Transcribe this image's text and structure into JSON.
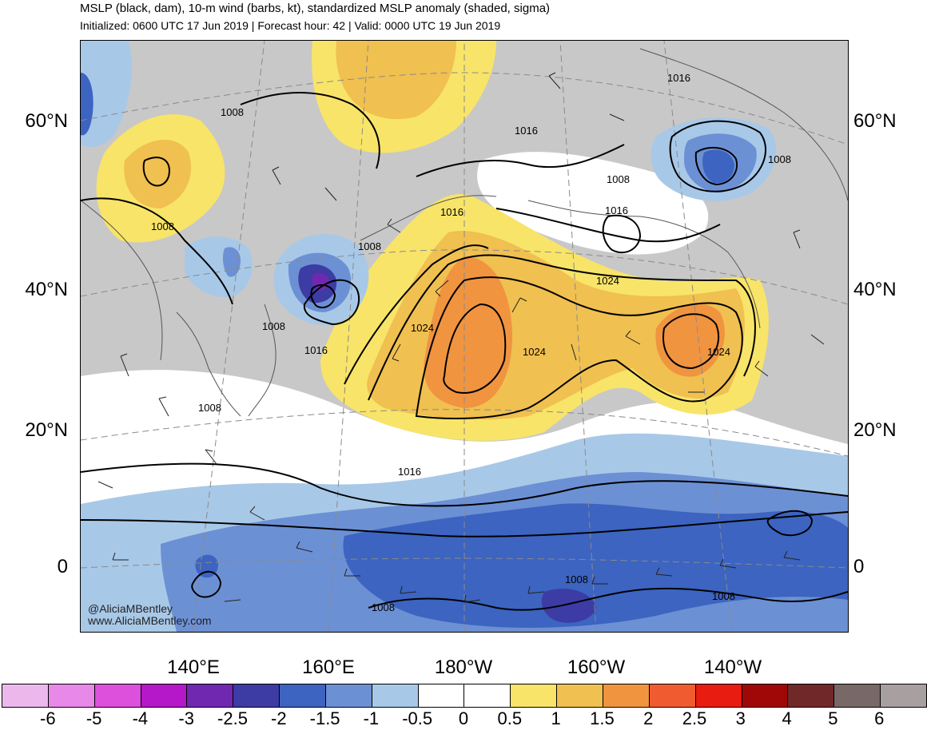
{
  "header": {
    "title": "MSLP (black, dam), 10-m wind (barbs, kt), standardized MSLP anomaly (shaded, sigma)",
    "subtitle": "Initialized: 0600 UTC 17 Jun 2019 | Forecast hour: 42 | Valid: 0000 UTC 19 Jun 2019"
  },
  "lat_labels": [
    "60°N",
    "40°N",
    "20°N",
    "0"
  ],
  "lon_labels": [
    "140°E",
    "160°E",
    "180°W",
    "160°W",
    "140°W"
  ],
  "isobar_labels": [
    "1008",
    "1008",
    "1008",
    "1008",
    "1008",
    "1008",
    "1008",
    "1008",
    "1008",
    "1016",
    "1016",
    "1016",
    "1016",
    "1016",
    "1016",
    "1024",
    "1024",
    "1024",
    "1024"
  ],
  "credits": {
    "handle": "@AliciaMBentley",
    "site": "www.AliciaMBentley.com"
  },
  "colorbar": {
    "ticks": [
      "-6",
      "-5",
      "-4",
      "-3",
      "-2.5",
      "-2",
      "-1.5",
      "-1",
      "-0.5",
      "0",
      "0.5",
      "1",
      "1.5",
      "2",
      "2.5",
      "3",
      "4",
      "5",
      "6"
    ],
    "colors": [
      "#ecb8ec",
      "#e888e8",
      "#dc50dc",
      "#b418c8",
      "#7028b0",
      "#3c3ca4",
      "#3c64c0",
      "#6c90d4",
      "#a8c8e8",
      "#ffffff",
      "#ffffff",
      "#f8e468",
      "#f0c050",
      "#f09440",
      "#f05c30",
      "#e81c10",
      "#a00808",
      "#702828",
      "#786868",
      "#a8a0a0"
    ]
  }
}
